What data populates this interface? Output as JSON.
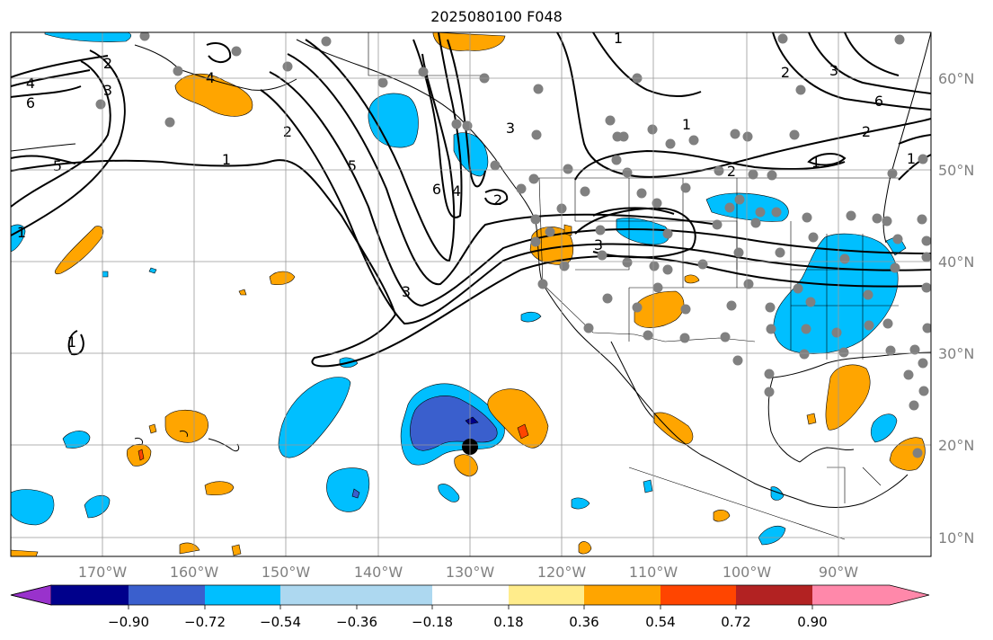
{
  "title": "2025080100 F048",
  "lat_labels": [
    "60°N",
    "50°N",
    "40°N",
    "30°N",
    "20°N",
    "10°N"
  ],
  "lon_labels": [
    "170°W",
    "160°W",
    "150°W",
    "140°W",
    "130°W",
    "120°W",
    "110°W",
    "100°W",
    "90°W"
  ],
  "colorbar": {
    "ticks": [
      "−0.90",
      "−0.72",
      "−0.54",
      "−0.36",
      "−0.18",
      "0.18",
      "0.36",
      "0.54",
      "0.72",
      "0.90"
    ],
    "colors": [
      "#9932cc",
      "#00008b",
      "#3a5fcd",
      "#00bfff",
      "#add8f0",
      "#ffffff",
      "#ffec8b",
      "#ffa500",
      "#ff4500",
      "#b22222",
      "#ff88aa"
    ]
  },
  "contour_labels": [
    "1",
    "2",
    "3",
    "4",
    "5",
    "6"
  ],
  "fill_colors": {
    "light_blue": "#00bfff",
    "mid_blue": "#3a5fcd",
    "dark_blue": "#00008b",
    "orange": "#ffa500",
    "red_orange": "#ff4500"
  },
  "marker_color": "#808080",
  "center_marker_color": "#000000"
}
